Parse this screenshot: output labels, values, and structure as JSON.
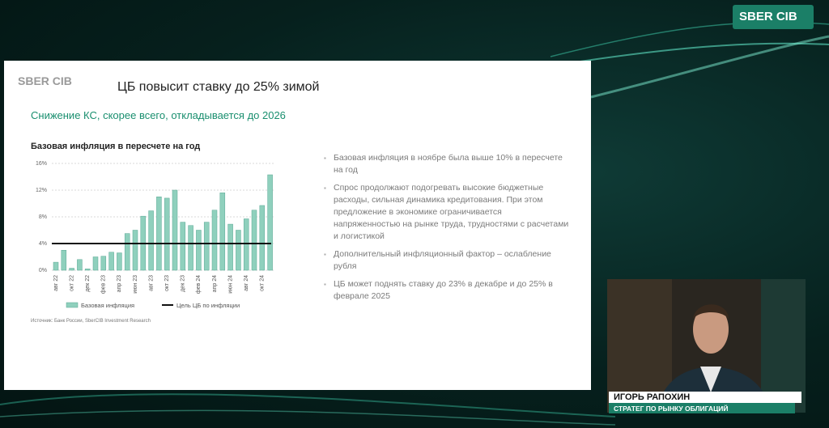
{
  "header": {
    "logo": "SBER CIB"
  },
  "slide": {
    "logo": "SBER CIB",
    "title": "ЦБ повысит ставку до 25% зимой",
    "subtitle": "Снижение КС, скорее всего, откладывается до 2026",
    "bullets": [
      "Базовая инфляция в ноябре была выше 10% в пересчете на год",
      "Спрос продолжают подогревать высокие бюджетные расходы, сильная динамика кредитования. При этом предложение в экономике ограничивается напряженностью на рынке труда, трудностями с расчетами и логистикой",
      "Дополнительный инфляционный фактор – ослабление рубля",
      "ЦБ может поднять ставку до 23% в декабре и до 25% в феврале 2025"
    ],
    "source": "Источник: Банк России, SberCIB Investment Research"
  },
  "chart_data": {
    "type": "bar",
    "title": "Базовая инфляция в пересчете на год",
    "categories": [
      "авг 22",
      null,
      "окт 22",
      null,
      "дек 22",
      null,
      "фев 23",
      null,
      "апр 23",
      null,
      "июн 23",
      null,
      "авг 23",
      null,
      "окт 23",
      null,
      "дек 23",
      null,
      "фев 24",
      null,
      "апр 24",
      null,
      "июн 24",
      null,
      "авг 24",
      null,
      "окт 24",
      null
    ],
    "series": [
      {
        "name": "Базовая инфляция",
        "type": "bar",
        "color": "#8fd0bd",
        "values": [
          1.2,
          3.0,
          0.3,
          1.6,
          0.2,
          2.0,
          2.1,
          2.7,
          2.6,
          5.5,
          6.0,
          8.1,
          8.9,
          11.0,
          10.8,
          12.0,
          7.2,
          6.7,
          6.0,
          7.2,
          9.0,
          11.6,
          6.9,
          6.0,
          7.7,
          9.0,
          9.7,
          14.3
        ]
      },
      {
        "name": "Цель ЦБ по инфляции",
        "type": "line",
        "color": "#111111",
        "values": [
          4,
          4,
          4,
          4,
          4,
          4,
          4,
          4,
          4,
          4,
          4,
          4,
          4,
          4,
          4,
          4,
          4,
          4,
          4,
          4,
          4,
          4,
          4,
          4,
          4,
          4,
          4,
          4
        ]
      }
    ],
    "ylim": [
      0,
      16
    ],
    "yticks": [
      {
        "value": 0,
        "label": "0%"
      },
      {
        "value": 4,
        "label": "4%"
      },
      {
        "value": 8,
        "label": "8%"
      },
      {
        "value": 12,
        "label": "12%"
      },
      {
        "value": 16,
        "label": "16%"
      }
    ],
    "grid": true
  },
  "caption": {
    "name": "ИГОРЬ РАПОХИН",
    "role": "СТРАТЕГ ПО РЫНКУ ОБЛИГАЦИЙ"
  }
}
